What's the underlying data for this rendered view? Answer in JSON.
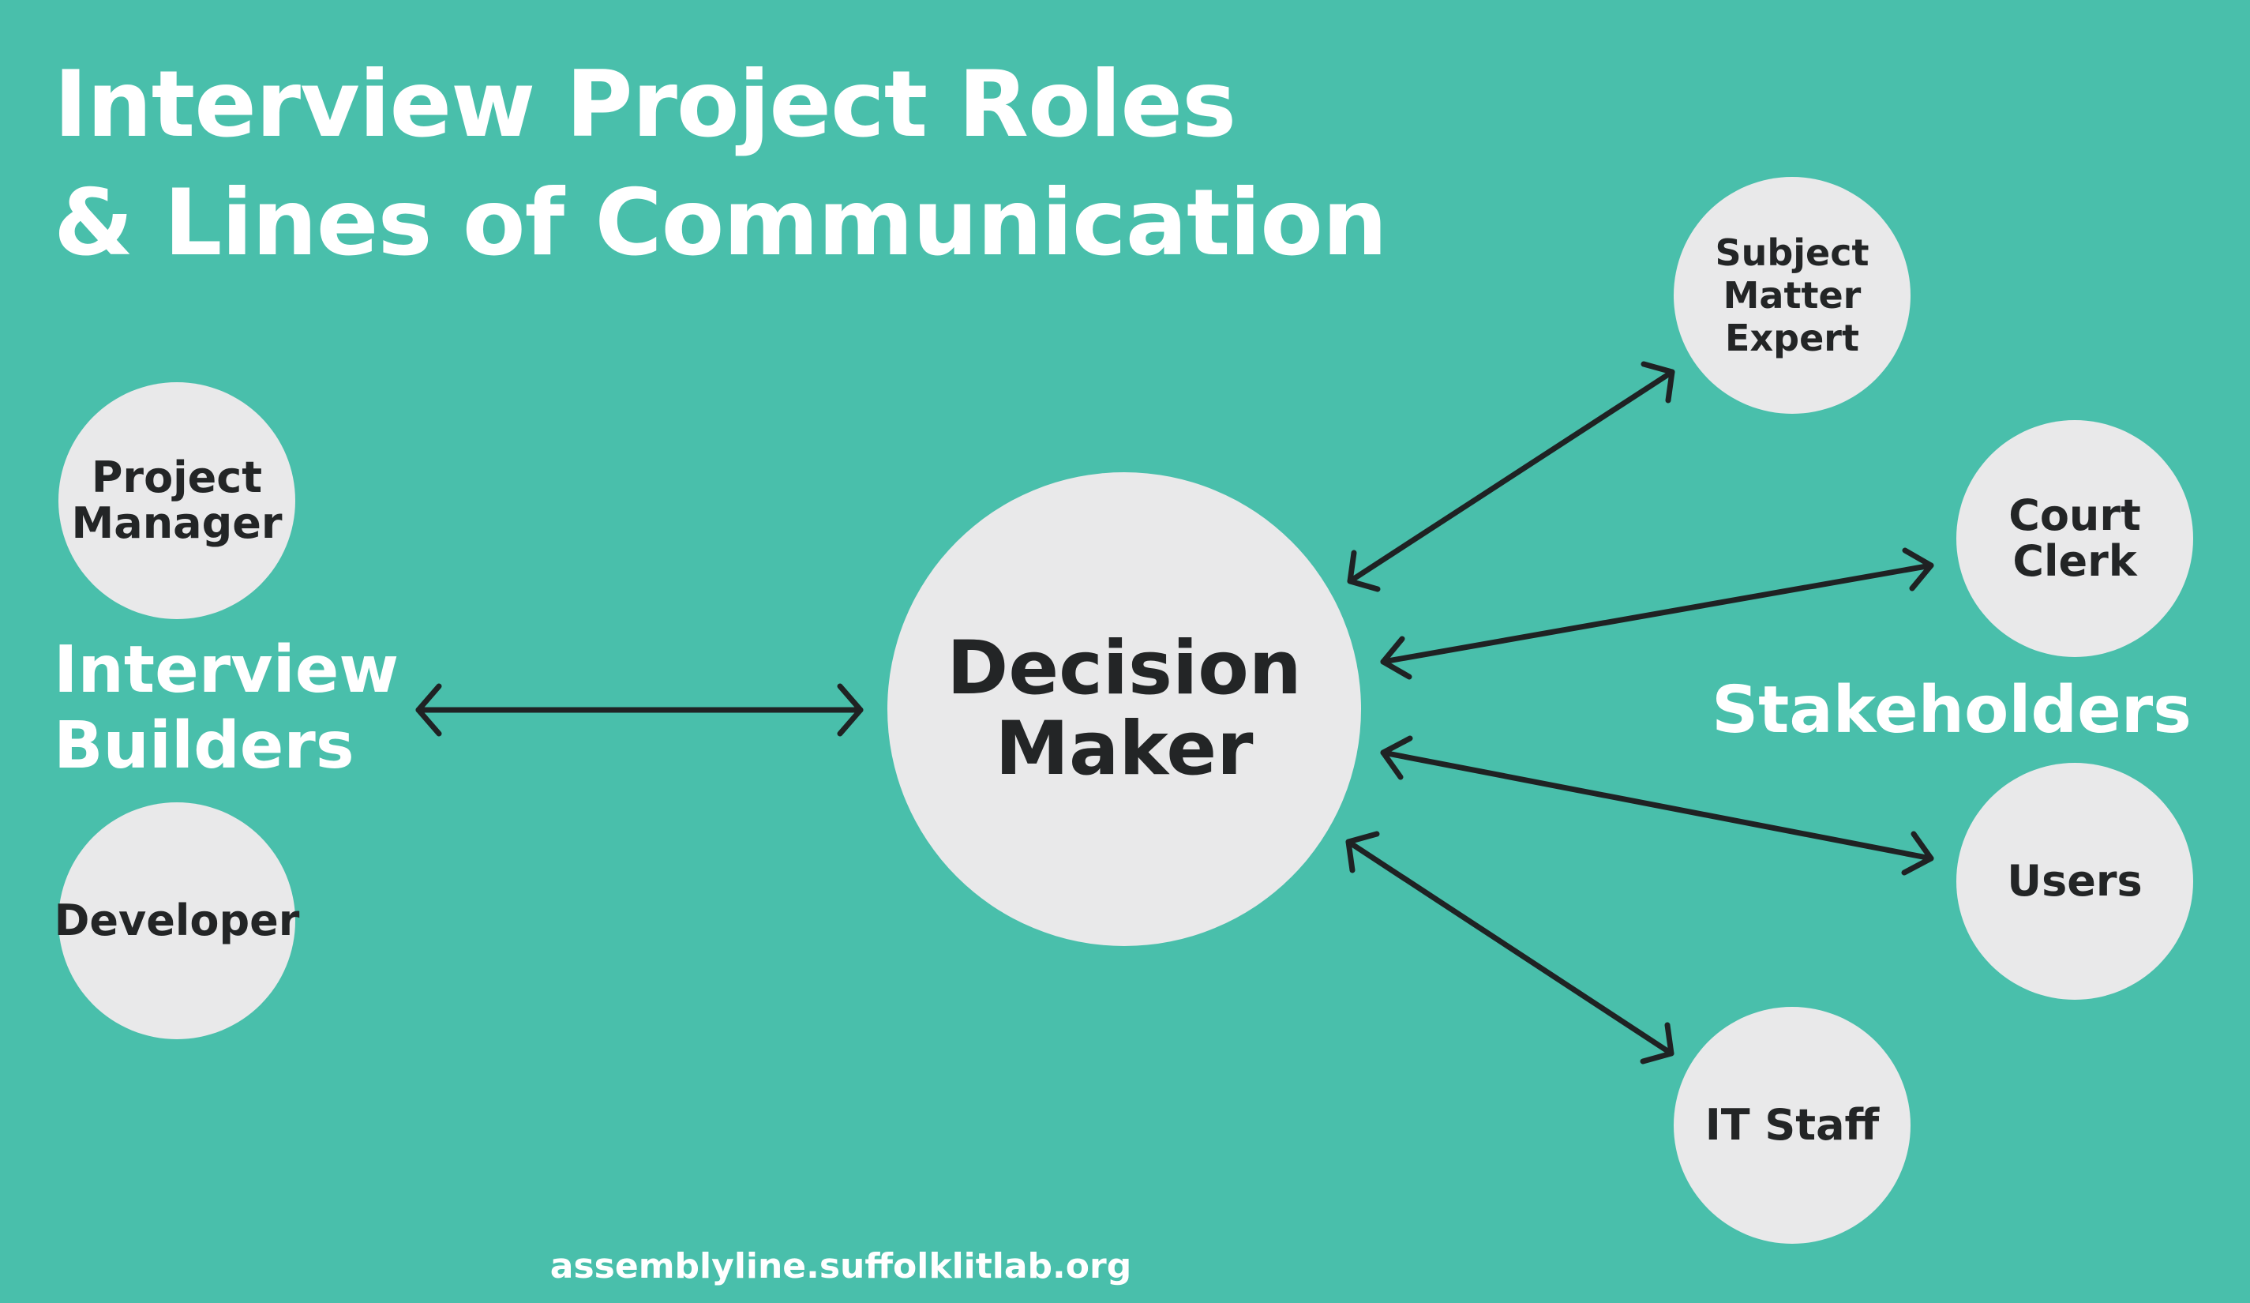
{
  "title": {
    "line1": "Interview Project Roles",
    "line2": "& Lines of Communication"
  },
  "groups": {
    "interview_builders": {
      "line1": "Interview",
      "line2": "Builders"
    },
    "stakeholders": "Stakeholders"
  },
  "nodes": {
    "project_manager": {
      "line1": "Project",
      "line2": "Manager"
    },
    "developer": "Developer",
    "decision_maker": {
      "line1": "Decision",
      "line2": "Maker"
    },
    "subject_matter_expert": {
      "line1": "Subject",
      "line2": "Matter",
      "line3": "Expert"
    },
    "court_clerk": {
      "line1": "Court",
      "line2": "Clerk"
    },
    "users": "Users",
    "it_staff": "IT Staff"
  },
  "connections": [
    {
      "from": "Decision Maker",
      "to": "Interview Builders",
      "direction": "bidirectional"
    },
    {
      "from": "Decision Maker",
      "to": "Subject Matter Expert",
      "direction": "bidirectional"
    },
    {
      "from": "Decision Maker",
      "to": "Court Clerk",
      "direction": "bidirectional"
    },
    {
      "from": "Decision Maker",
      "to": "Users",
      "direction": "bidirectional"
    },
    {
      "from": "Decision Maker",
      "to": "IT Staff",
      "direction": "bidirectional"
    }
  ],
  "colors": {
    "background": "#49bfab",
    "node_fill": "#e9e9ea",
    "node_text": "#232526",
    "arrow": "#1f2223",
    "heading_text": "#ffffff"
  },
  "footer": "assemblyline.suffolklitlab.org"
}
